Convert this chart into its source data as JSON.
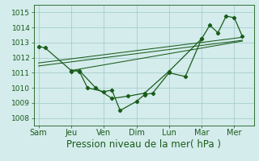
{
  "xlabel": "Pression niveau de la mer( hPa )",
  "xtick_labels": [
    "Sam",
    "Jeu",
    "Ven",
    "Dim",
    "Lun",
    "Mar",
    "Mer"
  ],
  "xtick_positions": [
    0,
    2,
    4,
    6,
    8,
    10,
    12
  ],
  "ylim": [
    1007.5,
    1015.5
  ],
  "xlim": [
    -0.3,
    13.2
  ],
  "yticks": [
    1008,
    1009,
    1010,
    1011,
    1012,
    1013,
    1014,
    1015
  ],
  "background_color": "#d4ecec",
  "grid_color": "#a0c8c8",
  "line_color": "#1a5c1a",
  "line1_x": [
    0,
    0.4,
    2.0,
    2.5,
    3.0,
    4.0,
    4.5,
    5.0,
    6.0,
    6.5,
    7.0,
    8.0,
    9.0,
    10.0,
    10.5,
    11.0,
    11.5,
    12.0,
    12.5
  ],
  "line1_y": [
    1012.75,
    1012.65,
    1011.15,
    1011.1,
    1010.0,
    1009.75,
    1009.85,
    1008.5,
    1009.1,
    1009.55,
    1009.65,
    1011.0,
    1010.75,
    1013.25,
    1014.15,
    1013.65,
    1014.75,
    1014.65,
    1013.4
  ],
  "line2_x": [
    2.0,
    2.5,
    3.5,
    4.5,
    5.5,
    6.5,
    8.0,
    10.0
  ],
  "line2_y": [
    1011.1,
    1011.15,
    1010.0,
    1009.3,
    1009.45,
    1009.65,
    1011.1,
    1013.25
  ],
  "trend1_x": [
    0.0,
    12.5
  ],
  "trend1_y": [
    1011.65,
    1013.35
  ],
  "trend2_x": [
    0.0,
    12.5
  ],
  "trend2_y": [
    1011.45,
    1013.15
  ],
  "trend3_x": [
    2.0,
    12.5
  ],
  "trend3_y": [
    1011.15,
    1013.1
  ],
  "marker": "D",
  "markersize": 2.2,
  "linewidth": 0.9,
  "trend_linewidth": 0.75,
  "xlabel_fontsize": 8.5,
  "ytick_fontsize": 6.5,
  "xtick_fontsize": 7.0
}
